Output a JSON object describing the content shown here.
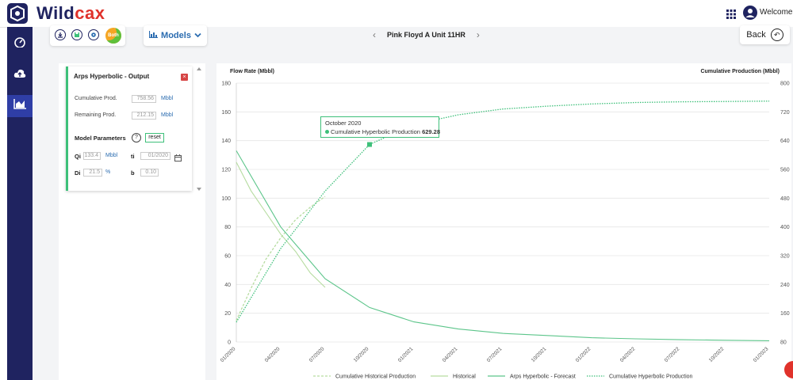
{
  "app": {
    "brand_main": "Wild",
    "brand_accent": "cax",
    "welcome_text": "Welcome U"
  },
  "sidebar": {
    "items": [
      {
        "icon": "dashboard-icon"
      },
      {
        "icon": "cloud-upload-icon"
      },
      {
        "icon": "area-chart-icon",
        "active": true
      }
    ]
  },
  "toolbar": {
    "icons": [
      "download-icon",
      "save-icon",
      "settings-icon"
    ],
    "both_label": "Both",
    "models_label": "Models"
  },
  "nav": {
    "well_name": "Pink Floyd A Unit 11HR",
    "back_label": "Back"
  },
  "output_panel": {
    "title": "Arps Hyperbolic - Output",
    "cum_prod_label": "Cumulative Prod.",
    "cum_prod_value": "758.56",
    "cum_prod_unit": "Mbbl",
    "rem_prod_label": "Remaining Prod.",
    "rem_prod_value": "212.15",
    "rem_prod_unit": "Mbbl",
    "model_params_label": "Model Parameters",
    "help_label": "?",
    "reset_label": "reset",
    "qi_label": "Qi",
    "qi_value": "133.4",
    "qi_unit": "Mbbl",
    "ti_label": "ti",
    "ti_value": "01/2020",
    "di_label": "Di",
    "di_value": "21.5",
    "di_unit": "%",
    "b_label": "b",
    "b_value": "0.10"
  },
  "tooltip": {
    "date": "October 2020",
    "series": "Cumulative Hyperbolic Production",
    "value": "629.28"
  },
  "colors": {
    "navy": "#1f2360",
    "accent_green": "#3ec07a",
    "forecast": "#5cc58a",
    "historical": "#b6dca0",
    "link_blue": "#2b6cb0"
  },
  "chart_data": {
    "type": "line",
    "ylabel_left": "Flow Rate (Mbbl)",
    "ylabel_right": "Cumulative Production (Mbbl)",
    "y_left_range": [
      0,
      180
    ],
    "y_right_range": [
      80,
      800
    ],
    "y_left_ticks": [
      "0",
      "20",
      "40",
      "60",
      "80",
      "100",
      "120",
      "140",
      "160",
      "180"
    ],
    "y_right_ticks": [
      "80",
      "160",
      "240",
      "320",
      "400",
      "480",
      "560",
      "640",
      "720",
      "800"
    ],
    "x_tick_labels": [
      "01/2020",
      "04/2020",
      "07/2020",
      "10/2020",
      "01/2021",
      "04/2021",
      "07/2021",
      "10/2021",
      "01/2022",
      "04/2022",
      "07/2022",
      "10/2022",
      "01/2023"
    ],
    "grid": true,
    "legend_position": "bottom",
    "series": [
      {
        "name": "Cumulative Historical Production",
        "axis": "right",
        "style": "dashed",
        "color": "#b6dca0",
        "x": [
          "01/2020",
          "02/2020",
          "03/2020",
          "04/2020",
          "05/2020",
          "06/2020",
          "07/2020"
        ],
        "y": [
          140,
          230,
          310,
          370,
          420,
          455,
          485
        ]
      },
      {
        "name": "Historical",
        "axis": "left",
        "style": "solid",
        "color": "#b6dca0",
        "x": [
          "01/2020",
          "02/2020",
          "03/2020",
          "04/2020",
          "05/2020",
          "06/2020",
          "07/2020"
        ],
        "y": [
          125,
          105,
          90,
          75,
          63,
          48,
          38
        ]
      },
      {
        "name": "Arps Hyperbolic - Forecast",
        "axis": "left",
        "style": "solid",
        "color": "#5cc58a",
        "x": [
          "01/2020",
          "04/2020",
          "07/2020",
          "10/2020",
          "01/2021",
          "04/2021",
          "07/2021",
          "10/2021",
          "01/2022",
          "04/2022",
          "07/2022",
          "10/2022",
          "01/2023"
        ],
        "y": [
          133,
          80,
          44,
          24,
          14,
          9,
          6,
          4.5,
          3,
          2.2,
          1.6,
          1.2,
          0.9
        ]
      },
      {
        "name": "Cumulative Hyperbolic Production",
        "axis": "right",
        "style": "dotted",
        "color": "#3ec07a",
        "x": [
          "01/2020",
          "04/2020",
          "07/2020",
          "10/2020",
          "01/2021",
          "04/2021",
          "07/2021",
          "10/2021",
          "01/2022",
          "04/2022",
          "07/2022",
          "10/2022",
          "01/2023"
        ],
        "y": [
          135,
          340,
          500,
          629.28,
          685,
          712,
          728,
          736,
          742,
          746,
          748,
          749,
          750
        ]
      }
    ]
  }
}
